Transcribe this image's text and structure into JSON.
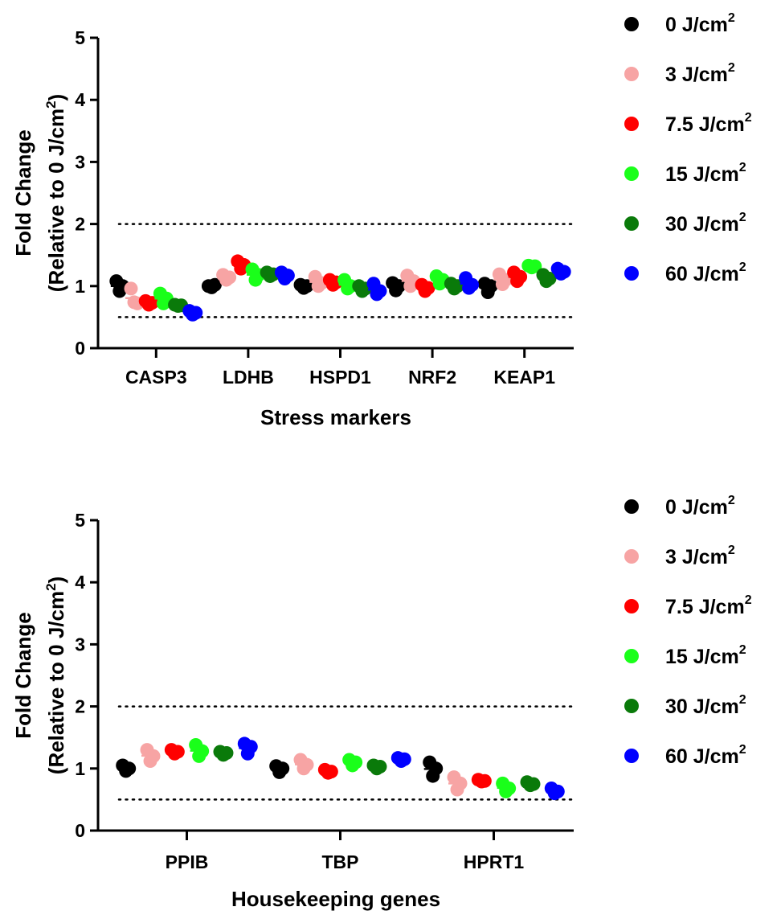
{
  "colors": {
    "0 J/cm2": "#000000",
    "3 J/cm2": "#f7a4a4",
    "7.5 J/cm2": "#ff0000",
    "15 J/cm2": "#1aff1a",
    "30 J/cm2": "#0a7a0a",
    "60 J/cm2": "#0000ff"
  },
  "chart_data": [
    {
      "type": "scatter",
      "xlabel": "Stress markers",
      "ylabel": {
        "line1": "Fold Change",
        "line2_prefix": "(Relative to 0 J/cm",
        "line2_sup": "2",
        "line2_suffix": ")"
      },
      "ylim": [
        0,
        5
      ],
      "yticks": [
        "0",
        "1",
        "2",
        "3",
        "4",
        "5"
      ],
      "reference_lines": [
        0.5,
        2
      ],
      "legend": [
        {
          "base": "0 J/cm",
          "sup": "2"
        },
        {
          "base": "3 J/cm",
          "sup": "2"
        },
        {
          "base": "7.5 J/cm",
          "sup": "2"
        },
        {
          "base": "15 J/cm",
          "sup": "2"
        },
        {
          "base": "30 J/cm",
          "sup": "2"
        },
        {
          "base": "60 J/cm",
          "sup": "2"
        }
      ],
      "categories": [
        "CASP3",
        "LDHB",
        "HSPD1",
        "NRF2",
        "KEAP1"
      ],
      "series": [
        {
          "name": "0 J/cm2",
          "values": [
            [
              1.08,
              0.92,
              1.0
            ],
            [
              1.0,
              0.98,
              1.02
            ],
            [
              1.02,
              0.97,
              1.0
            ],
            [
              1.05,
              0.93,
              1.0
            ],
            [
              1.04,
              0.9,
              1.0
            ]
          ]
        },
        {
          "name": "3 J/cm2",
          "values": [
            [
              0.96,
              0.74,
              0.72
            ],
            [
              1.18,
              1.1,
              1.14
            ],
            [
              1.15,
              1.0,
              1.05
            ],
            [
              1.17,
              1.0,
              1.08
            ],
            [
              1.19,
              1.03,
              1.1
            ]
          ]
        },
        {
          "name": "7.5 J/cm2",
          "values": [
            [
              0.76,
              0.7,
              0.73
            ],
            [
              1.4,
              1.28,
              1.34
            ],
            [
              1.1,
              1.02,
              1.06
            ],
            [
              1.02,
              0.92,
              0.97
            ],
            [
              1.22,
              1.08,
              1.15
            ]
          ]
        },
        {
          "name": "15 J/cm2",
          "values": [
            [
              0.88,
              0.72,
              0.8
            ],
            [
              1.27,
              1.1,
              1.18
            ],
            [
              1.1,
              0.96,
              1.0
            ],
            [
              1.16,
              1.04,
              1.1
            ],
            [
              1.33,
              1.3,
              1.32
            ]
          ]
        },
        {
          "name": "30 J/cm2",
          "values": [
            [
              0.7,
              0.68,
              0.69
            ],
            [
              1.22,
              1.16,
              1.19
            ],
            [
              1.0,
              0.92,
              0.96
            ],
            [
              1.04,
              0.96,
              1.0
            ],
            [
              1.18,
              1.08,
              1.12
            ]
          ]
        },
        {
          "name": "60 J/cm2",
          "values": [
            [
              0.6,
              0.54,
              0.57
            ],
            [
              1.22,
              1.12,
              1.17
            ],
            [
              1.04,
              0.87,
              0.92
            ],
            [
              1.13,
              0.97,
              1.02
            ],
            [
              1.28,
              1.2,
              1.23
            ]
          ]
        }
      ]
    },
    {
      "type": "scatter",
      "xlabel": "Housekeeping genes",
      "ylabel": {
        "line1": "Fold Change",
        "line2_prefix": "(Relative to 0 J/cm",
        "line2_sup": "2",
        "line2_suffix": ")"
      },
      "ylim": [
        0,
        5
      ],
      "yticks": [
        "0",
        "1",
        "2",
        "3",
        "4",
        "5"
      ],
      "reference_lines": [
        0.5,
        2
      ],
      "legend": [
        {
          "base": "0 J/cm",
          "sup": "2"
        },
        {
          "base": "3 J/cm",
          "sup": "2"
        },
        {
          "base": "7.5 J/cm",
          "sup": "2"
        },
        {
          "base": "15 J/cm",
          "sup": "2"
        },
        {
          "base": "30 J/cm",
          "sup": "2"
        },
        {
          "base": "60 J/cm",
          "sup": "2"
        }
      ],
      "categories": [
        "PPIB",
        "TBP",
        "HPRT1"
      ],
      "series": [
        {
          "name": "0 J/cm2",
          "values": [
            [
              1.05,
              0.96,
              1.0
            ],
            [
              1.04,
              0.94,
              1.0
            ],
            [
              1.1,
              0.88,
              1.0
            ]
          ]
        },
        {
          "name": "3 J/cm2",
          "values": [
            [
              1.3,
              1.12,
              1.2
            ],
            [
              1.14,
              1.0,
              1.06
            ],
            [
              0.86,
              0.66,
              0.76
            ]
          ]
        },
        {
          "name": "7.5 J/cm2",
          "values": [
            [
              1.3,
              1.24,
              1.27
            ],
            [
              0.98,
              0.93,
              0.95
            ],
            [
              0.82,
              0.79,
              0.8
            ]
          ]
        },
        {
          "name": "15 J/cm2",
          "values": [
            [
              1.38,
              1.2,
              1.28
            ],
            [
              1.14,
              1.05,
              1.1
            ],
            [
              0.76,
              0.63,
              0.68
            ]
          ]
        },
        {
          "name": "30 J/cm2",
          "values": [
            [
              1.27,
              1.22,
              1.25
            ],
            [
              1.05,
              1.0,
              1.03
            ],
            [
              0.78,
              0.73,
              0.75
            ]
          ]
        },
        {
          "name": "60 J/cm2",
          "values": [
            [
              1.4,
              1.24,
              1.35
            ],
            [
              1.17,
              1.12,
              1.15
            ],
            [
              0.68,
              0.6,
              0.63
            ]
          ]
        }
      ]
    }
  ]
}
